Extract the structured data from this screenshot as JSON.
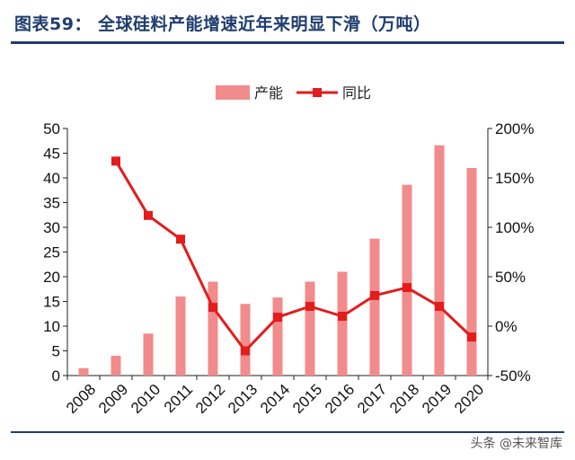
{
  "header": {
    "title": "图表59：  全球硅料产能增速近年来明显下滑（万吨）"
  },
  "watermark": "头条 @未来智库",
  "chart_data": {
    "type": "bar+line",
    "title": "图表59：  全球硅料产能增速近年来明显下滑（万吨）",
    "categories": [
      "2008",
      "2009",
      "2010",
      "2011",
      "2012",
      "2013",
      "2014",
      "2015",
      "2016",
      "2017",
      "2018",
      "2019",
      "2020"
    ],
    "series": [
      {
        "name": "产能",
        "type": "bar",
        "axis": "left",
        "color": "#f28b8b",
        "values": [
          1.5,
          4,
          8.5,
          16,
          19,
          14.5,
          15.8,
          19,
          21,
          27.7,
          38.6,
          46.6,
          42
        ]
      },
      {
        "name": "同比",
        "type": "line",
        "axis": "right",
        "color": "#e31c1c",
        "values": [
          null,
          167,
          112,
          88,
          19,
          -25,
          9,
          20,
          10,
          31,
          39,
          20,
          -11
        ]
      }
    ],
    "y_left": {
      "min": 0,
      "max": 50,
      "ticks": [
        "0",
        "5",
        "10",
        "15",
        "20",
        "25",
        "30",
        "35",
        "40",
        "45",
        "50"
      ]
    },
    "y_right": {
      "min": -50,
      "max": 200,
      "ticks": [
        "-50%",
        "0%",
        "50%",
        "100%",
        "150%",
        "200%"
      ]
    },
    "legend": {
      "position": "top"
    },
    "grid": false
  }
}
